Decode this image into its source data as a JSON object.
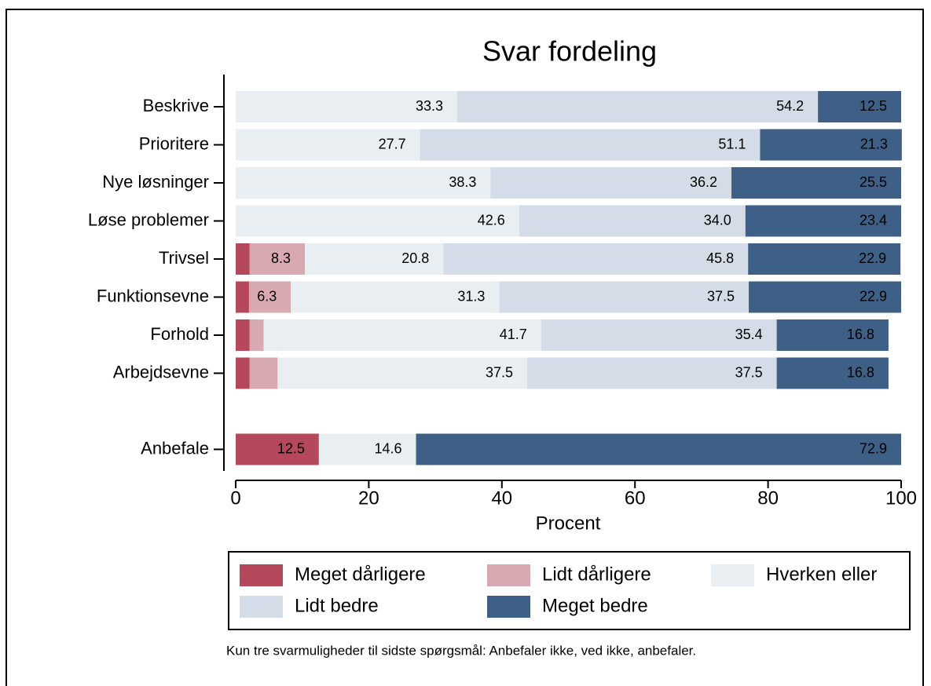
{
  "chart_data": {
    "type": "stacked-bar-horizontal",
    "title": "Svar fordeling",
    "x_label": "Procent",
    "footnote": "Kun tre svarmuligheder til sidste spørgsmål: Anbefaler ikke, ved ikke, anbefaler.",
    "categories": [
      "Beskrive",
      "Prioritere",
      "Nye løsninger",
      "Løse problemer",
      "Trivsel",
      "Funktionsevne",
      "Forhold",
      "Arbejdsevne",
      null,
      "Anbefale"
    ],
    "series": [
      {
        "name": "Meget dårligere",
        "color": "#b5495b",
        "values": [
          0,
          0,
          0,
          0,
          2.1,
          2.0,
          2.1,
          2.1,
          null,
          12.5
        ],
        "value_labels": [
          null,
          null,
          null,
          null,
          null,
          null,
          null,
          null,
          null,
          "12.5"
        ]
      },
      {
        "name": "Lidt dårligere",
        "color": "#d9a9b1",
        "values": [
          0,
          0,
          0,
          0,
          8.3,
          6.3,
          2.1,
          4.2,
          null,
          0
        ],
        "value_labels": [
          null,
          null,
          null,
          null,
          "8.3",
          "6.3",
          null,
          null,
          null,
          null
        ]
      },
      {
        "name": "Hverken eller",
        "color": "#e9eef3",
        "values": [
          33.3,
          27.7,
          38.3,
          42.6,
          20.8,
          31.3,
          41.7,
          37.5,
          null,
          14.6
        ],
        "value_labels": [
          "33.3",
          "27.7",
          "38.3",
          "42.6",
          "20.8",
          "31.3",
          "41.7",
          "37.5",
          null,
          "14.6"
        ]
      },
      {
        "name": "Lidt bedre",
        "color": "#d4dde7",
        "values": [
          54.2,
          51.1,
          36.2,
          34.0,
          45.8,
          37.5,
          35.4,
          37.5,
          null,
          0
        ],
        "value_labels": [
          "54.2",
          "51.1",
          "36.2",
          "34.0",
          "45.8",
          "37.5",
          "35.4",
          "37.5",
          null,
          null
        ]
      },
      {
        "name": "Meget bedre",
        "color": "#3e5f86",
        "values": [
          12.5,
          21.3,
          25.5,
          23.4,
          22.9,
          22.9,
          16.8,
          16.8,
          null,
          72.9
        ],
        "value_labels": [
          "12.5",
          "21.3",
          "25.5",
          "23.4",
          "22.9",
          "22.9",
          "16.8",
          "16.8",
          null,
          "72.9"
        ]
      }
    ],
    "xlim": [
      0,
      100
    ],
    "xticks": [
      0,
      20,
      40,
      60,
      80,
      100
    ],
    "legend": "bottom"
  }
}
